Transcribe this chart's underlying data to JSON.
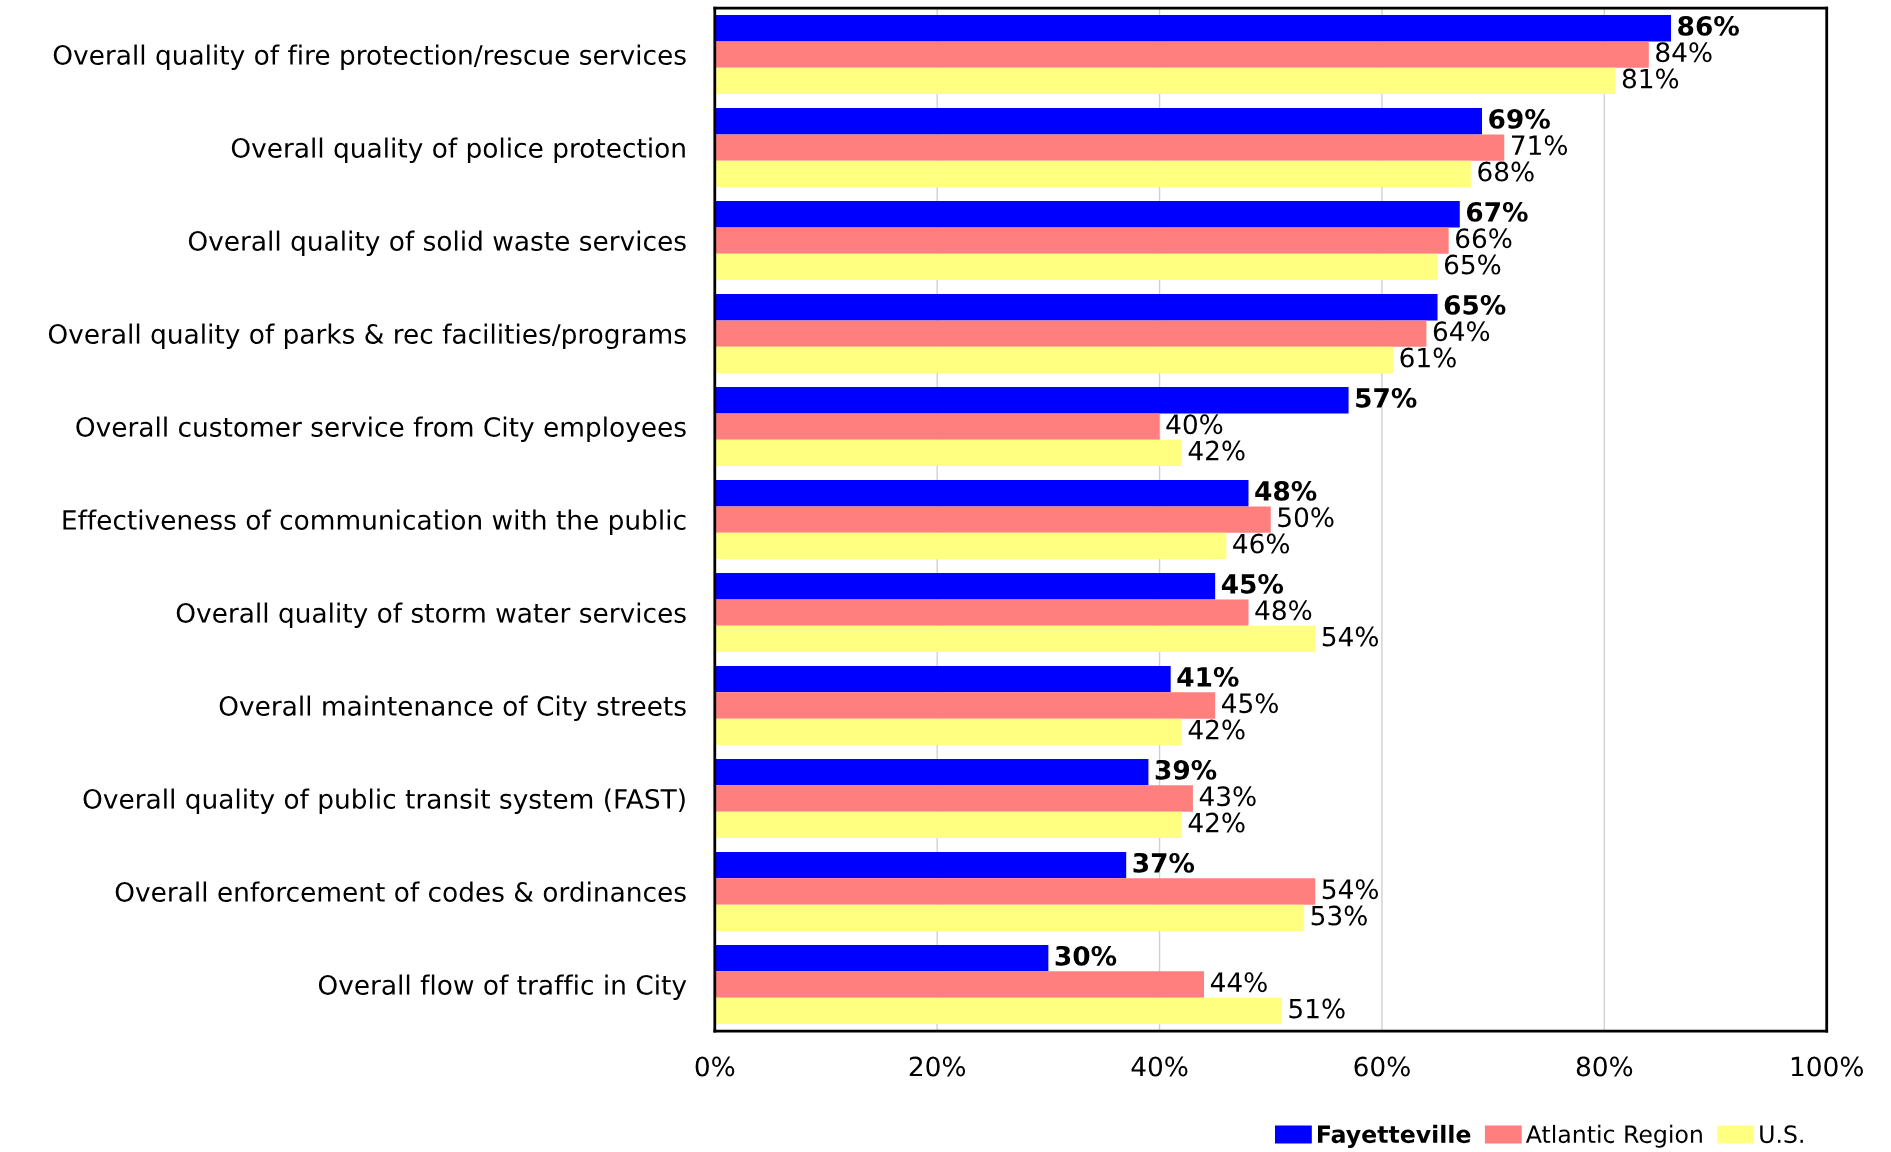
{
  "chart_data": {
    "type": "bar",
    "orientation": "horizontal",
    "categories": [
      "Overall quality of fire protection/rescue services",
      "Overall quality of police protection",
      "Overall quality of solid waste services",
      "Overall quality of parks & rec facilities/programs",
      "Overall customer service from City employees",
      "Effectiveness of communication with the public",
      "Overall quality of storm water services",
      "Overall maintenance of City streets",
      "Overall quality of public transit system (FAST)",
      "Overall enforcement of codes & ordinances",
      "Overall flow of traffic in City"
    ],
    "series": [
      {
        "name": "Fayetteville",
        "color": "#0000ff",
        "values": [
          86,
          69,
          67,
          65,
          57,
          48,
          45,
          41,
          39,
          37,
          30
        ],
        "value_labels": [
          "86%",
          "69%",
          "67%",
          "65%",
          "57%",
          "48%",
          "45%",
          "41%",
          "39%",
          "37%",
          "30%"
        ]
      },
      {
        "name": "Atlantic Region",
        "color": "#ff7f7f",
        "values": [
          84,
          71,
          66,
          64,
          40,
          50,
          48,
          45,
          43,
          54,
          44
        ],
        "value_labels": [
          "84%",
          "71%",
          "66%",
          "64%",
          "40%",
          "50%",
          "48%",
          "45%",
          "43%",
          "54%",
          "44%"
        ]
      },
      {
        "name": "U.S.",
        "color": "#ffff80",
        "values": [
          81,
          68,
          65,
          61,
          42,
          46,
          54,
          42,
          42,
          53,
          51
        ],
        "value_labels": [
          "81%",
          "68%",
          "65%",
          "61%",
          "42%",
          "46%",
          "54%",
          "42%",
          "42%",
          "53%",
          "51%"
        ]
      }
    ],
    "xlim": [
      0,
      100
    ],
    "xticks": [
      {
        "value": 0,
        "label": "0%"
      },
      {
        "value": 20,
        "label": "20%"
      },
      {
        "value": 40,
        "label": "40%"
      },
      {
        "value": 60,
        "label": "60%"
      },
      {
        "value": 80,
        "label": "80%"
      },
      {
        "value": 100,
        "label": "100%"
      }
    ],
    "grid": "x",
    "legend": "bottom right"
  }
}
